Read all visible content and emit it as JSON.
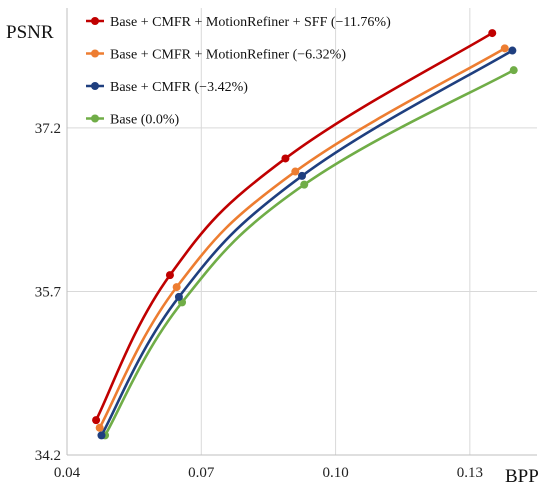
{
  "chart_data": {
    "type": "line",
    "title": "",
    "xlabel": "BPP",
    "ylabel": "PSNR",
    "xlim": [
      0.04,
      0.145
    ],
    "ylim": [
      34.2,
      38.3
    ],
    "xticks": [
      0.04,
      0.07,
      0.1,
      0.13
    ],
    "xtick_labels": [
      "0.04",
      "0.07",
      "0.10",
      "0.13"
    ],
    "yticks": [
      34.2,
      35.7,
      37.2
    ],
    "ytick_labels": [
      "34.2",
      "35.7",
      "37.2"
    ],
    "grid": "vertical",
    "legend_position": "top-left",
    "series": [
      {
        "name": "Base + CMFR + MotionRefiner + SFF (−11.76%)",
        "color": "#c00000",
        "x": [
          0.0465,
          0.063,
          0.0888,
          0.135
        ],
        "y": [
          34.52,
          35.85,
          36.92,
          38.07
        ]
      },
      {
        "name": "Base + CMFR + MotionRefiner (−6.32%)",
        "color": "#ed7d31",
        "x": [
          0.0473,
          0.0645,
          0.091,
          0.1378
        ],
        "y": [
          34.45,
          35.74,
          36.8,
          37.93
        ]
      },
      {
        "name": "Base + CMFR (−3.42%)",
        "color": "#1f3f7f",
        "x": [
          0.0477,
          0.065,
          0.0925,
          0.1395
        ],
        "y": [
          34.38,
          35.65,
          36.76,
          37.91
        ]
      },
      {
        "name": "Base (0.0%)",
        "color": "#70ad47",
        "x": [
          0.0485,
          0.0657,
          0.093,
          0.1398
        ],
        "y": [
          34.38,
          35.6,
          36.68,
          37.73
        ]
      }
    ]
  }
}
